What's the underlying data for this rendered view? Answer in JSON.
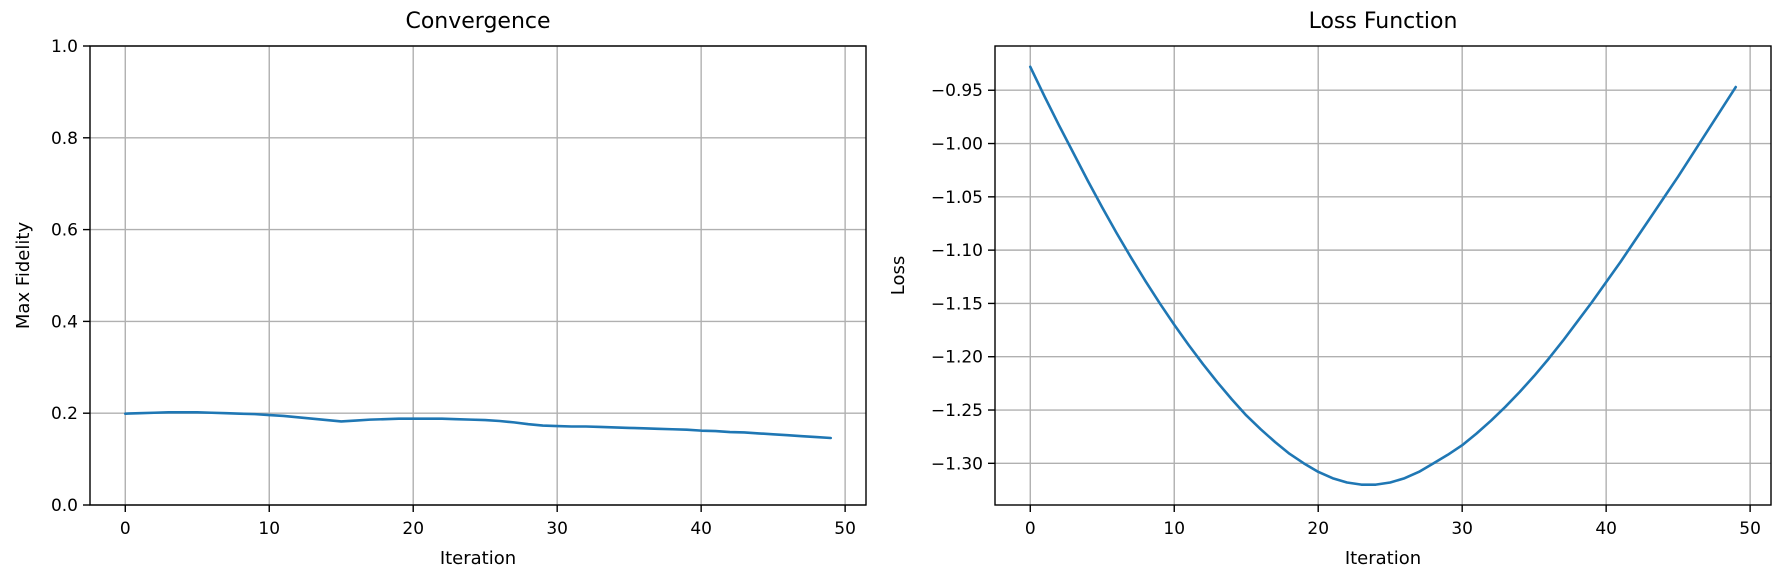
{
  "chart_data": [
    {
      "type": "line",
      "title": "Convergence",
      "xlabel": "Iteration",
      "ylabel": "Max Fidelity",
      "xlim": [
        -2.45,
        51.45
      ],
      "ylim": [
        0,
        1.0
      ],
      "xticks": [
        0,
        10,
        20,
        30,
        40,
        50
      ],
      "xtick_labels": [
        "0",
        "10",
        "20",
        "30",
        "40",
        "50"
      ],
      "yticks": [
        0.0,
        0.2,
        0.4,
        0.6,
        0.8,
        1.0
      ],
      "ytick_labels": [
        "0.0",
        "0.2",
        "0.4",
        "0.6",
        "0.8",
        "1.0"
      ],
      "grid": true,
      "series": [
        {
          "color": "#1f77b4",
          "x": [
            0,
            1,
            2,
            3,
            4,
            5,
            6,
            7,
            8,
            9,
            10,
            11,
            12,
            13,
            14,
            15,
            16,
            17,
            18,
            19,
            20,
            21,
            22,
            23,
            24,
            25,
            26,
            27,
            28,
            29,
            30,
            31,
            32,
            33,
            34,
            35,
            36,
            37,
            38,
            39,
            40,
            41,
            42,
            43,
            44,
            45,
            46,
            47,
            48,
            49
          ],
          "y": [
            0.199,
            0.2,
            0.201,
            0.202,
            0.202,
            0.202,
            0.201,
            0.2,
            0.199,
            0.198,
            0.196,
            0.194,
            0.191,
            0.188,
            0.185,
            0.182,
            0.184,
            0.186,
            0.187,
            0.188,
            0.188,
            0.188,
            0.188,
            0.187,
            0.186,
            0.185,
            0.183,
            0.18,
            0.176,
            0.173,
            0.172,
            0.171,
            0.171,
            0.17,
            0.169,
            0.168,
            0.167,
            0.166,
            0.165,
            0.164,
            0.162,
            0.161,
            0.159,
            0.158,
            0.156,
            0.154,
            0.152,
            0.15,
            0.148,
            0.146
          ]
        }
      ]
    },
    {
      "type": "line",
      "title": "Loss Function",
      "xlabel": "Iteration",
      "ylabel": "Loss",
      "xlim": [
        -2.45,
        51.45
      ],
      "ylim": [
        -1.3391,
        -0.9085
      ],
      "xticks": [
        0,
        10,
        20,
        30,
        40,
        50
      ],
      "xtick_labels": [
        "0",
        "10",
        "20",
        "30",
        "40",
        "50"
      ],
      "yticks": [
        -1.3,
        -1.25,
        -1.2,
        -1.15,
        -1.1,
        -1.05,
        -1.0,
        -0.95
      ],
      "ytick_labels": [
        "−1.30",
        "−1.25",
        "−1.20",
        "−1.15",
        "−1.10",
        "−1.05",
        "−1.00",
        "−0.95"
      ],
      "grid": true,
      "series": [
        {
          "color": "#1f77b4",
          "x": [
            0,
            1,
            2,
            3,
            4,
            5,
            6,
            7,
            8,
            9,
            10,
            11,
            12,
            13,
            14,
            15,
            16,
            17,
            18,
            19,
            20,
            21,
            22,
            23,
            24,
            25,
            26,
            27,
            28,
            29,
            30,
            31,
            32,
            33,
            34,
            35,
            36,
            37,
            38,
            39,
            40,
            41,
            42,
            43,
            44,
            45,
            46,
            47,
            48,
            49
          ],
          "y": [
            -0.928,
            -0.956,
            -0.983,
            -1.009,
            -1.035,
            -1.06,
            -1.084,
            -1.107,
            -1.129,
            -1.15,
            -1.17,
            -1.189,
            -1.207,
            -1.224,
            -1.24,
            -1.255,
            -1.268,
            -1.28,
            -1.291,
            -1.3,
            -1.308,
            -1.314,
            -1.318,
            -1.32,
            -1.32,
            -1.318,
            -1.314,
            -1.308,
            -1.3,
            -1.292,
            -1.283,
            -1.272,
            -1.26,
            -1.247,
            -1.233,
            -1.218,
            -1.202,
            -1.185,
            -1.167,
            -1.149,
            -1.13,
            -1.111,
            -1.091,
            -1.071,
            -1.051,
            -1.031,
            -1.01,
            -0.989,
            -0.968,
            -0.947
          ]
        }
      ]
    }
  ]
}
